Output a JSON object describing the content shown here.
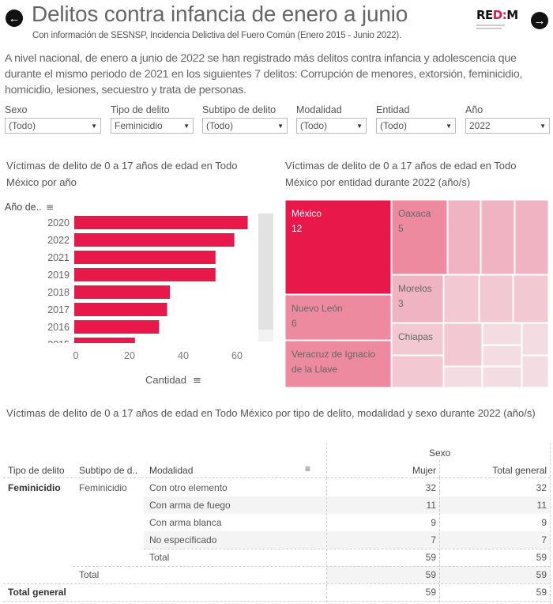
{
  "header": {
    "title": "Delitos contra infancia de enero a junio",
    "subtitle": "Con información de SESNSP, Incidencia Delictiva del Fuero Común (Enero 2015 - Junio 2022).",
    "prev_icon": "arrow-left-circle-icon",
    "next_icon": "arrow-right-circle-icon",
    "logo": {
      "text_black_1": "RE",
      "text_red": "D:",
      "text_black_2": "M"
    }
  },
  "intro_text": "A nivel nacional, de enero a junio de 2022 se han registrado más delitos contra infancia y adolescencia que durante el mismo periodo de 2021 en los siguientes 7 delitos: Corrupción de menores, extorsión, feminicidio, homicidio, lesiones, secuestro y trata de personas.",
  "filters": [
    {
      "label": "Sexo",
      "value": "(Todo)"
    },
    {
      "label": "Tipo de delito",
      "value": "Feminicidio"
    },
    {
      "label": "Subtipo de delito",
      "value": "(Todo)"
    },
    {
      "label": "Modalidad",
      "value": "(Todo)"
    },
    {
      "label": "Entidad",
      "value": "(Todo)"
    },
    {
      "label": "Año",
      "value": "2022"
    }
  ],
  "colors": {
    "accent": "#e8194a",
    "treemap_scale": [
      "#e8194a",
      "#ee8aa0",
      "#f0b3c2",
      "#f2c9d3",
      "#f3dde3"
    ]
  },
  "chart_data": [
    {
      "type": "bar",
      "orientation": "horizontal",
      "title": "Víctimas de delito de 0 a 17 años de edad en Todo México por año",
      "ylabel": "Año de..",
      "xlabel": "Cantidad",
      "categories": [
        "2020",
        "2022",
        "2021",
        "2019",
        "2018",
        "2017",
        "2016",
        "2015"
      ],
      "values": [
        64,
        59,
        52,
        52,
        35,
        34,
        31,
        22
      ],
      "xlim": [
        0,
        70
      ],
      "xticks": [
        0,
        20,
        40,
        60
      ],
      "grid": false,
      "truncated_last_label": true
    },
    {
      "type": "treemap",
      "title": "Víctimas de delito de 0 a 17 años de edad en Todo México por entidad durante 2022 (año/s)",
      "labeled_items": [
        {
          "name": "México",
          "value": 12
        },
        {
          "name": "Nuevo León",
          "value": 6
        },
        {
          "name": "Veracruz de Ignacio de la Llave",
          "value": null
        },
        {
          "name": "Oaxaca",
          "value": 5
        },
        {
          "name": "Morelos",
          "value": 3
        },
        {
          "name": "Chiapas",
          "value": null
        }
      ],
      "unlabeled_item_count": 15
    }
  ],
  "table": {
    "title": "Víctimas de delito de 0 a 17 años de edad en Todo México por tipo de delito, modalidad y sexo durante 2022 (año/s)",
    "group_header": "Sexo",
    "columns": [
      "Tipo de delito",
      "Subtipo de d..",
      "Modalidad",
      "Mujer",
      "Total general"
    ],
    "rows": [
      {
        "tipo": "Feminicidio",
        "subtipo": "Feminicidio",
        "modalidad": "Con otro elemento",
        "mujer": "32",
        "total": "32"
      },
      {
        "tipo": "",
        "subtipo": "",
        "modalidad": "Con arma de fuego",
        "mujer": "11",
        "total": "11"
      },
      {
        "tipo": "",
        "subtipo": "",
        "modalidad": "Con arma blanca",
        "mujer": "9",
        "total": "9"
      },
      {
        "tipo": "",
        "subtipo": "",
        "modalidad": "No especificado",
        "mujer": "7",
        "total": "7"
      },
      {
        "tipo": "",
        "subtipo": "",
        "modalidad": "Total",
        "mujer": "59",
        "total": "59"
      },
      {
        "tipo": "",
        "subtipo": "Total",
        "modalidad": "",
        "mujer": "59",
        "total": "59"
      },
      {
        "tipo": "Total general",
        "subtipo": "",
        "modalidad": "",
        "mujer": "59",
        "total": "59"
      }
    ]
  }
}
